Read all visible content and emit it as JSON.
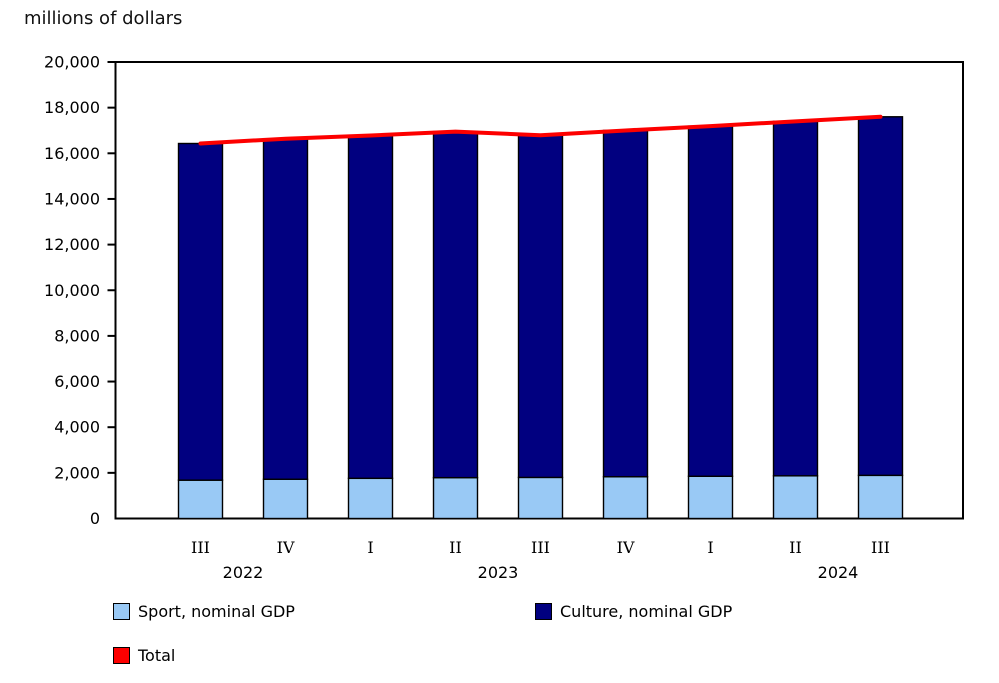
{
  "title": "millions of dollars",
  "chart_data": {
    "type": "bar",
    "stacked": true,
    "title": "millions of dollars",
    "xlabel": "",
    "ylabel": "millions of dollars",
    "ylim": [
      0,
      20000
    ],
    "ytick_step": 2000,
    "ytick_labels": [
      "0",
      "2,000",
      "4,000",
      "6,000",
      "8,000",
      "10,000",
      "12,000",
      "14,000",
      "16,000",
      "18,000",
      "20,000"
    ],
    "grid": false,
    "legend_position": "bottom",
    "categories": [
      "III",
      "IV",
      "I",
      "II",
      "III",
      "IV",
      "I",
      "II",
      "III"
    ],
    "year_groups": [
      {
        "label": "2022",
        "from": 0,
        "to": 1
      },
      {
        "label": "2023",
        "from": 2,
        "to": 5
      },
      {
        "label": "2024",
        "from": 6,
        "to": 8
      }
    ],
    "series": [
      {
        "name": "Sport, nominal GDP",
        "type": "bar",
        "color": "#99c9f5",
        "values": [
          1680,
          1720,
          1760,
          1790,
          1800,
          1830,
          1850,
          1870,
          1890
        ]
      },
      {
        "name": "Culture, nominal GDP",
        "type": "bar",
        "color": "#010080",
        "values": [
          14750,
          14920,
          15020,
          15160,
          14990,
          15170,
          15340,
          15530,
          15710
        ]
      },
      {
        "name": "Total",
        "type": "line",
        "color": "#fd0000",
        "values": [
          16430,
          16640,
          16780,
          16950,
          16790,
          17000,
          17190,
          17400,
          17600
        ]
      }
    ]
  },
  "legend": {
    "items": [
      {
        "label": "Sport, nominal GDP",
        "color": "#99c9f5"
      },
      {
        "label": "Culture, nominal GDP",
        "color": "#010080"
      },
      {
        "label": "Total",
        "color": "#fd0000"
      }
    ]
  }
}
